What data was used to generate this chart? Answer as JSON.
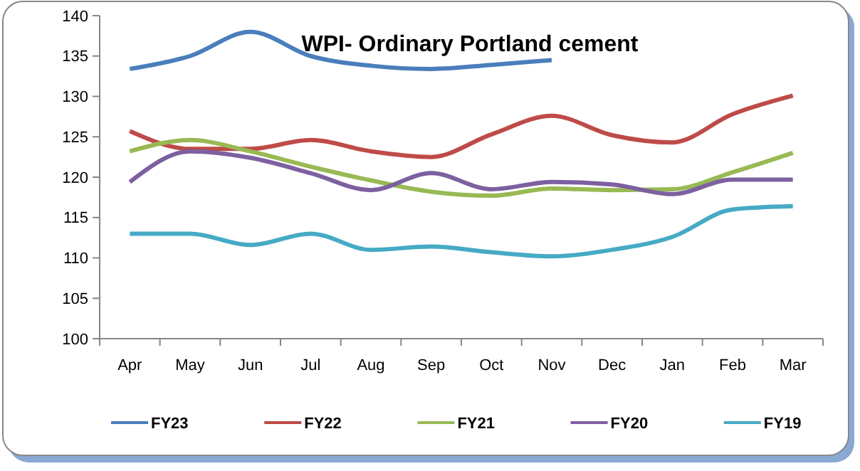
{
  "chart_data": {
    "type": "line",
    "title": "WPI- Ordinary Portland cement",
    "categories": [
      "Apr",
      "May",
      "Jun",
      "Jul",
      "Aug",
      "Sep",
      "Oct",
      "Nov",
      "Dec",
      "Jan",
      "Feb",
      "Mar"
    ],
    "ylim": [
      100,
      140
    ],
    "yticks": [
      100,
      105,
      110,
      115,
      120,
      125,
      130,
      135,
      140
    ],
    "legend": "bottom",
    "marker": "none",
    "series": [
      {
        "name": "FY23",
        "color": "#4a7ebb",
        "values": [
          133.4,
          135,
          138,
          135,
          133.8,
          133.4,
          133.9,
          134.5,
          null,
          null,
          null,
          null
        ]
      },
      {
        "name": "FY22",
        "color": "#be4b48",
        "values": [
          125.7,
          123.5,
          123.5,
          124.6,
          123.2,
          122.5,
          125.3,
          127.6,
          125.2,
          124.3,
          127.8,
          130.1
        ]
      },
      {
        "name": "FY21",
        "color": "#98b954",
        "values": [
          123.2,
          124.6,
          123.2,
          121.3,
          119.6,
          118.2,
          117.7,
          118.6,
          118.4,
          118.5,
          120.6,
          123
        ]
      },
      {
        "name": "FY20",
        "color": "#7d60a0",
        "values": [
          119.4,
          123.2,
          122.4,
          120.5,
          118.4,
          120.5,
          118.5,
          119.4,
          119.1,
          117.9,
          119.7,
          119.7
        ]
      },
      {
        "name": "FY19",
        "color": "#46aac5",
        "values": [
          113,
          113,
          111.6,
          113,
          111,
          111.4,
          110.7,
          110.2,
          111,
          112.6,
          116,
          116.4
        ]
      }
    ]
  }
}
